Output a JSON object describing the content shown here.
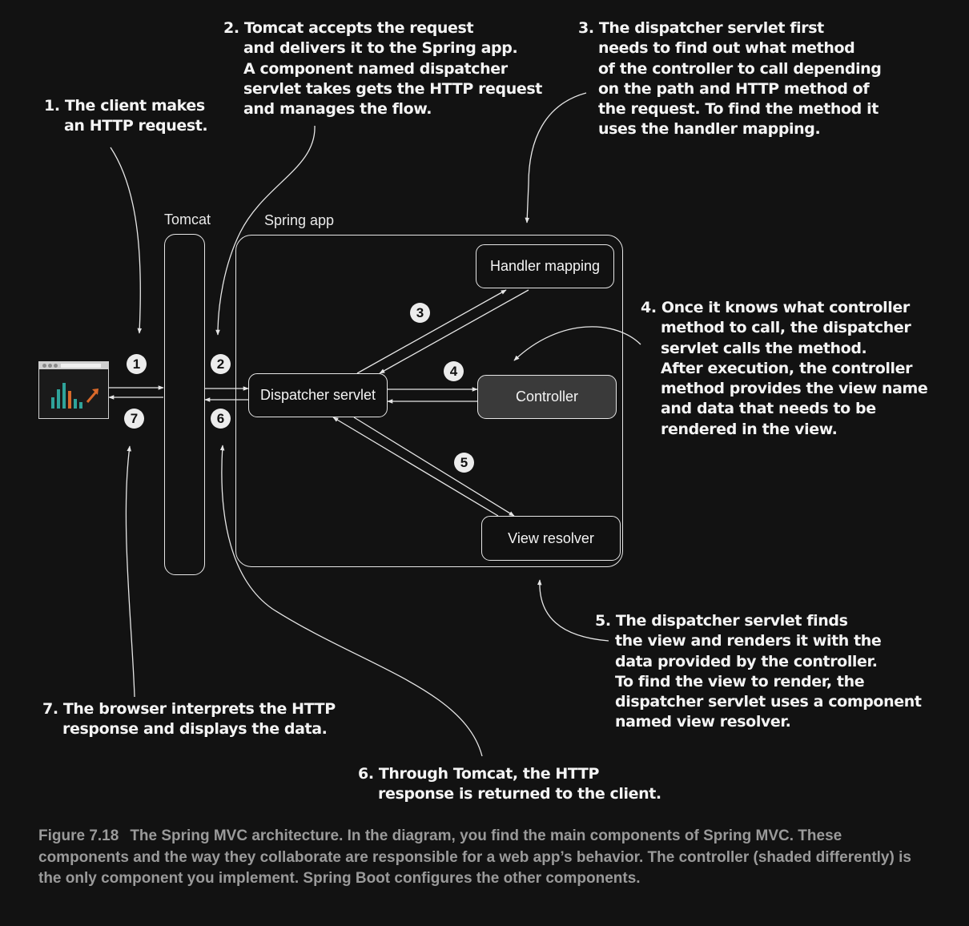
{
  "notes": {
    "n1": [
      "1. The client makes",
      "an HTTP request."
    ],
    "n2": [
      "2. Tomcat accepts the request",
      "and delivers it to the Spring app.",
      "A component named dispatcher",
      "servlet takes gets the HTTP request",
      "and manages the flow."
    ],
    "n3": [
      "3. The dispatcher servlet first",
      "needs to find out what method",
      "of the controller to call depending",
      "on the path and HTTP method of",
      "the request. To find the method it",
      "uses the handler mapping."
    ],
    "n4": [
      "4. Once it knows what controller",
      "method to call, the dispatcher",
      "servlet calls the method.",
      "After execution, the controller",
      "method provides the view name",
      "and data that needs to be",
      "rendered in the view."
    ],
    "n5": [
      "5. The dispatcher servlet finds",
      "the view and renders it with the",
      "data provided by the controller.",
      "To find the view to render, the",
      "dispatcher servlet uses a component",
      "named view resolver."
    ],
    "n6": [
      "6. Through Tomcat, the HTTP",
      "response is returned to the client."
    ],
    "n7": [
      "7. The browser interprets the HTTP",
      "response and displays the data."
    ]
  },
  "labels": {
    "tomcat": "Tomcat",
    "spring_app": "Spring app"
  },
  "components": {
    "dispatcher": "Dispatcher servlet",
    "handler_mapping": "Handler mapping",
    "controller": "Controller",
    "view_resolver": "View resolver"
  },
  "badges": [
    "1",
    "2",
    "3",
    "4",
    "5",
    "6",
    "7"
  ],
  "caption": {
    "figure": "Figure 7.18",
    "text": "The Spring MVC architecture. In the diagram, you find the main components of Spring MVC. These components and the way they collaborate are responsible for a web app’s behavior. The controller (shaded differently) is the only component you implement. Spring Boot configures the other components."
  },
  "colors": {
    "background": "#121212",
    "line": "#e6e6e6",
    "controller_fill": "#3a3a3a",
    "caption": "#9a9a9a",
    "chart_teal": "#2fa39a",
    "chart_orange": "#d9692a"
  },
  "icons": [
    "browser-window-icon",
    "chart-icon"
  ]
}
